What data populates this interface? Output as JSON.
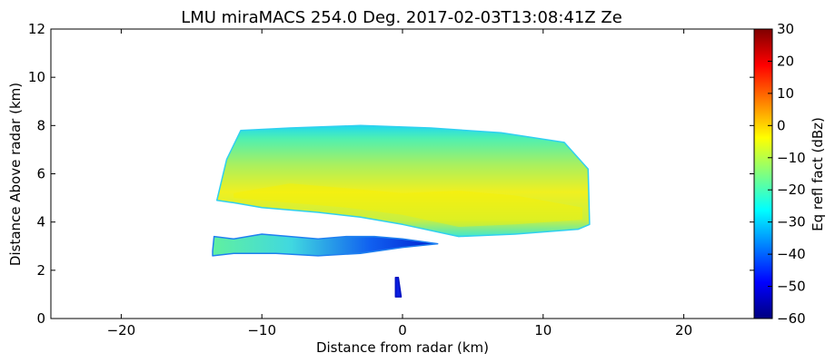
{
  "chart_data": {
    "type": "heatmap",
    "title": "LMU miraMACS 254.0 Deg. 2017-02-03T13:08:41Z  Ze",
    "xlabel": "Distance from radar (km)",
    "ylabel": "Distance Above radar  (km)",
    "xlim": [
      -25,
      25
    ],
    "ylim": [
      0,
      12
    ],
    "xticks": [
      "−20",
      "−10",
      "0",
      "10",
      "20"
    ],
    "xtick_values": [
      -20,
      -10,
      0,
      10,
      20
    ],
    "yticks": [
      "0",
      "2",
      "4",
      "6",
      "8",
      "10",
      "12"
    ],
    "ytick_values": [
      0,
      2,
      4,
      6,
      8,
      10,
      12
    ],
    "grid": false,
    "colorbar": {
      "label": "Eq refl fact (dBz)",
      "colormap": "jet",
      "range": [
        -60,
        30
      ],
      "ticks": [
        "30",
        "20",
        "10",
        "0",
        "−10",
        "−20",
        "−30",
        "−40",
        "−50",
        "−60"
      ],
      "tick_values": [
        30,
        20,
        10,
        0,
        -10,
        -20,
        -30,
        -40,
        -50,
        -60
      ]
    },
    "features": [
      {
        "name": "upper-cloud-layer",
        "dbz_edge": -30,
        "dbz_core": -5,
        "outline_km": [
          [
            -13.2,
            4.9
          ],
          [
            -12.5,
            6.6
          ],
          [
            -11.5,
            7.8
          ],
          [
            -8,
            7.9
          ],
          [
            -3,
            8.0
          ],
          [
            2,
            7.9
          ],
          [
            7,
            7.7
          ],
          [
            11.5,
            7.3
          ],
          [
            13.2,
            6.2
          ],
          [
            13.3,
            3.9
          ],
          [
            12.5,
            3.7
          ],
          [
            8,
            3.5
          ],
          [
            4,
            3.4
          ],
          [
            0,
            3.9
          ],
          [
            -3,
            4.2
          ],
          [
            -6,
            4.4
          ],
          [
            -10,
            4.6
          ],
          [
            -12,
            4.8
          ]
        ]
      },
      {
        "name": "lower-cloud-layer",
        "dbz_edge": -25,
        "dbz_core": -40,
        "outline_km": [
          [
            -13.5,
            2.8
          ],
          [
            -13.4,
            3.4
          ],
          [
            -12,
            3.3
          ],
          [
            -10,
            3.5
          ],
          [
            -8,
            3.4
          ],
          [
            -6,
            3.3
          ],
          [
            -4,
            3.4
          ],
          [
            -2,
            3.4
          ],
          [
            0,
            3.3
          ],
          [
            2.5,
            3.1
          ],
          [
            0,
            2.95
          ],
          [
            -3,
            2.7
          ],
          [
            -6,
            2.6
          ],
          [
            -9,
            2.7
          ],
          [
            -12,
            2.7
          ],
          [
            -13.5,
            2.6
          ]
        ]
      },
      {
        "name": "ground-echo",
        "dbz_core": -45,
        "outline_km": [
          [
            -0.5,
            1.7
          ],
          [
            -0.3,
            1.7
          ],
          [
            -0.1,
            0.9
          ],
          [
            -0.5,
            0.9
          ]
        ]
      }
    ]
  }
}
